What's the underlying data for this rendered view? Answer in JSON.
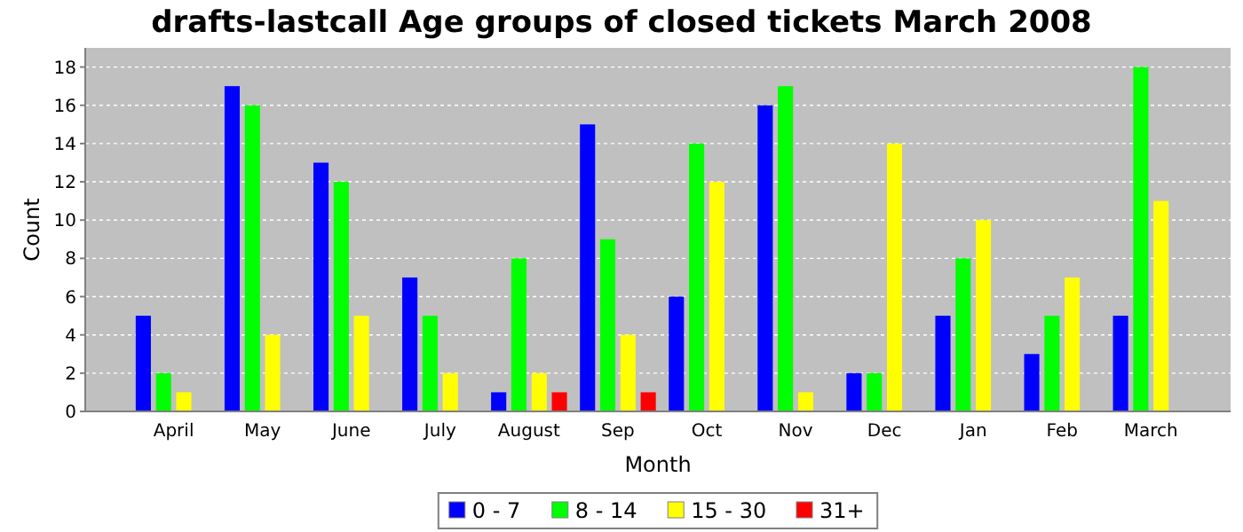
{
  "chart_data": {
    "type": "bar",
    "title": "drafts-lastcall Age groups of closed tickets March 2008",
    "xlabel": "Month",
    "ylabel": "Count",
    "categories": [
      "April",
      "May",
      "June",
      "July",
      "August",
      "Sep",
      "Oct",
      "Nov",
      "Dec",
      "Jan",
      "Feb",
      "March"
    ],
    "series": [
      {
        "name": "0 - 7",
        "color": "#0000ff",
        "values": [
          5,
          17,
          13,
          7,
          1,
          15,
          6,
          16,
          2,
          5,
          3,
          5
        ]
      },
      {
        "name": "8 - 14",
        "color": "#00ff00",
        "values": [
          2,
          16,
          12,
          5,
          8,
          9,
          14,
          17,
          2,
          8,
          5,
          18
        ]
      },
      {
        "name": "15 - 30",
        "color": "#ffff00",
        "values": [
          1,
          4,
          5,
          2,
          2,
          4,
          12,
          1,
          14,
          10,
          7,
          11
        ]
      },
      {
        "name": "31+",
        "color": "#ff0000",
        "values": [
          0,
          0,
          0,
          0,
          1,
          1,
          0,
          0,
          0,
          0,
          0,
          0
        ]
      }
    ],
    "ylim": [
      0,
      19
    ],
    "yticks": [
      0,
      2,
      4,
      6,
      8,
      10,
      12,
      14,
      16,
      18
    ],
    "grid": "y",
    "legend": "bottom"
  }
}
